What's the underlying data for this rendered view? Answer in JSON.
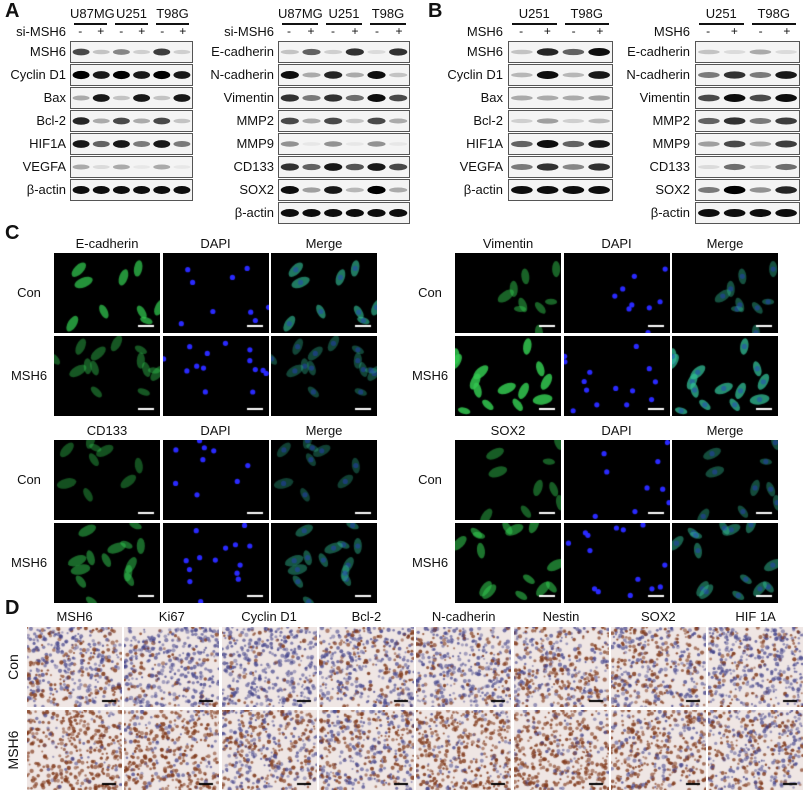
{
  "panels": {
    "A": "A",
    "B": "B",
    "C": "C",
    "D": "D"
  },
  "blots": {
    "A_left": {
      "treatment_label": "si-MSH6",
      "cell_lines": [
        "U87MG",
        "U251",
        "T98G"
      ],
      "lane_signs": [
        "-",
        "+",
        "-",
        "+",
        "-",
        "+"
      ],
      "rows": [
        {
          "label": "MSH6",
          "intensity": [
            0.7,
            0.2,
            0.45,
            0.15,
            0.75,
            0.15
          ]
        },
        {
          "label": "Cyclin D1",
          "intensity": [
            1,
            0.9,
            1,
            0.9,
            1,
            0.9
          ]
        },
        {
          "label": "Bax",
          "intensity": [
            0.3,
            0.9,
            0.2,
            0.9,
            0.2,
            0.9
          ]
        },
        {
          "label": "Bcl-2",
          "intensity": [
            0.85,
            0.3,
            0.7,
            0.3,
            0.7,
            0.2
          ]
        },
        {
          "label": "HIF1A",
          "intensity": [
            0.9,
            0.6,
            0.9,
            0.5,
            0.9,
            0.5
          ]
        },
        {
          "label": "VEGFA",
          "intensity": [
            0.3,
            0.1,
            0.3,
            0.05,
            0.3,
            0.05
          ]
        },
        {
          "label": "β-actin",
          "intensity": [
            0.95,
            0.95,
            0.95,
            0.95,
            0.95,
            0.95
          ]
        }
      ]
    },
    "A_right": {
      "treatment_label": "si-MSH6",
      "cell_lines": [
        "U87MG",
        "U251",
        "T98G"
      ],
      "lane_signs": [
        "-",
        "+",
        "-",
        "+",
        "-",
        "+"
      ],
      "rows": [
        {
          "label": "E-cadherin",
          "intensity": [
            0.2,
            0.6,
            0.15,
            0.8,
            0.1,
            0.8
          ]
        },
        {
          "label": "N-cadherin",
          "intensity": [
            0.95,
            0.3,
            0.85,
            0.3,
            0.95,
            0.2
          ]
        },
        {
          "label": "Vimentin",
          "intensity": [
            0.8,
            0.5,
            0.8,
            0.55,
            0.95,
            0.7
          ]
        },
        {
          "label": "MMP2",
          "intensity": [
            0.7,
            0.3,
            0.7,
            0.2,
            0.7,
            0.3
          ]
        },
        {
          "label": "MMP9",
          "intensity": [
            0.4,
            0.05,
            0.4,
            0.05,
            0.4,
            0.05
          ]
        },
        {
          "label": "CD133",
          "intensity": [
            0.8,
            0.6,
            0.9,
            0.65,
            0.9,
            0.7
          ]
        },
        {
          "label": "SOX2",
          "intensity": [
            0.95,
            0.35,
            0.9,
            0.25,
            1,
            0.3
          ]
        },
        {
          "label": "β-actin",
          "intensity": [
            0.95,
            0.95,
            0.95,
            0.95,
            0.95,
            0.95
          ]
        }
      ]
    },
    "B_left": {
      "treatment_label": "MSH6",
      "cell_lines": [
        "U251",
        "T98G"
      ],
      "lane_signs": [
        "-",
        "+",
        "-",
        "+"
      ],
      "rows": [
        {
          "label": "MSH6",
          "intensity": [
            0.2,
            0.85,
            0.6,
            0.95
          ]
        },
        {
          "label": "Cyclin D1",
          "intensity": [
            0.25,
            0.95,
            0.25,
            0.9
          ]
        },
        {
          "label": "Bax",
          "intensity": [
            0.3,
            0.3,
            0.3,
            0.35
          ]
        },
        {
          "label": "Bcl-2",
          "intensity": [
            0.15,
            0.35,
            0.15,
            0.25
          ]
        },
        {
          "label": "HIF1A",
          "intensity": [
            0.6,
            0.95,
            0.6,
            0.9
          ]
        },
        {
          "label": "VEGFA",
          "intensity": [
            0.5,
            0.8,
            0.45,
            0.8
          ]
        },
        {
          "label": "β-actin",
          "intensity": [
            0.95,
            0.95,
            0.95,
            0.95
          ]
        }
      ]
    },
    "B_right": {
      "treatment_label": "MSH6",
      "cell_lines": [
        "U251",
        "T98G"
      ],
      "lane_signs": [
        "-",
        "+",
        "-",
        "+"
      ],
      "rows": [
        {
          "label": "E-cadherin",
          "intensity": [
            0.2,
            0.1,
            0.3,
            0.1
          ]
        },
        {
          "label": "N-cadherin",
          "intensity": [
            0.5,
            0.8,
            0.5,
            0.9
          ]
        },
        {
          "label": "Vimentin",
          "intensity": [
            0.7,
            0.95,
            0.7,
            0.95
          ]
        },
        {
          "label": "MMP2",
          "intensity": [
            0.6,
            0.8,
            0.5,
            0.75
          ]
        },
        {
          "label": "MMP9",
          "intensity": [
            0.35,
            0.7,
            0.3,
            0.75
          ]
        },
        {
          "label": "CD133",
          "intensity": [
            0.1,
            0.55,
            0.1,
            0.55
          ]
        },
        {
          "label": "SOX2",
          "intensity": [
            0.5,
            1,
            0.4,
            0.85
          ]
        },
        {
          "label": "β-actin",
          "intensity": [
            0.95,
            0.95,
            0.95,
            0.95
          ]
        }
      ]
    }
  },
  "immunofluorescence": {
    "row_labels": [
      "Con",
      "MSH6"
    ],
    "groups": [
      {
        "columns": [
          "E-cadherin",
          "DAPI",
          "Merge"
        ],
        "marker_level": [
          0.8,
          0.3
        ]
      },
      {
        "columns": [
          "Vimentin",
          "DAPI",
          "Merge"
        ],
        "marker_level": [
          0.4,
          1.0
        ]
      },
      {
        "columns": [
          "CD133",
          "DAPI",
          "Merge"
        ],
        "marker_level": [
          0.25,
          0.45
        ]
      },
      {
        "columns": [
          "SOX2",
          "DAPI",
          "Merge"
        ],
        "marker_level": [
          0.35,
          0.55
        ]
      }
    ],
    "colors": {
      "marker": "#2fbf4a",
      "dapi": "#2a2aff",
      "background": "#000000"
    }
  },
  "ihc": {
    "row_labels": [
      "Con",
      "MSH6"
    ],
    "columns": [
      "MSH6",
      "Ki67",
      "Cyclin D1",
      "Bcl-2",
      "N-cadherin",
      "Nestin",
      "SOX2",
      "HIF 1A"
    ],
    "brown_level": {
      "Con": [
        0.35,
        0.2,
        0.2,
        0.35,
        0.3,
        0.55,
        0.5,
        0.3
      ],
      "MSH6": [
        0.85,
        0.75,
        0.5,
        0.5,
        0.75,
        0.8,
        0.7,
        0.5
      ]
    },
    "colors": {
      "hematoxylin": "#4a4a8a",
      "dab": "#8a4a2a",
      "background": "#efe6e4"
    }
  }
}
